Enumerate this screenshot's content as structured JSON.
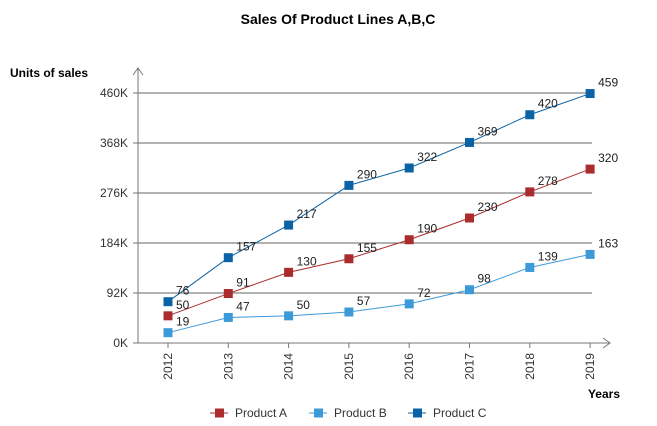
{
  "chart_data": {
    "type": "line",
    "title": "Sales Of Product Lines A,B,C",
    "xlabel": "Years",
    "ylabel": "Units of sales",
    "categories": [
      "2012",
      "2013",
      "2014",
      "2015",
      "2016",
      "2017",
      "2018",
      "2019"
    ],
    "y_ticks": [
      "0K",
      "92K",
      "184K",
      "276K",
      "368K",
      "460K"
    ],
    "ylim": [
      0,
      460
    ],
    "grid": true,
    "legend_position": "bottom",
    "series": [
      {
        "name": "Product A",
        "color": "#aa2c2c",
        "values": [
          50,
          91,
          130,
          155,
          190,
          230,
          278,
          320
        ]
      },
      {
        "name": "Product B",
        "color": "#3d9ad9",
        "values": [
          19,
          47,
          50,
          57,
          72,
          98,
          139,
          163
        ]
      },
      {
        "name": "Product C",
        "color": "#0b63a6",
        "values": [
          76,
          157,
          217,
          290,
          322,
          369,
          420,
          459
        ]
      }
    ]
  }
}
